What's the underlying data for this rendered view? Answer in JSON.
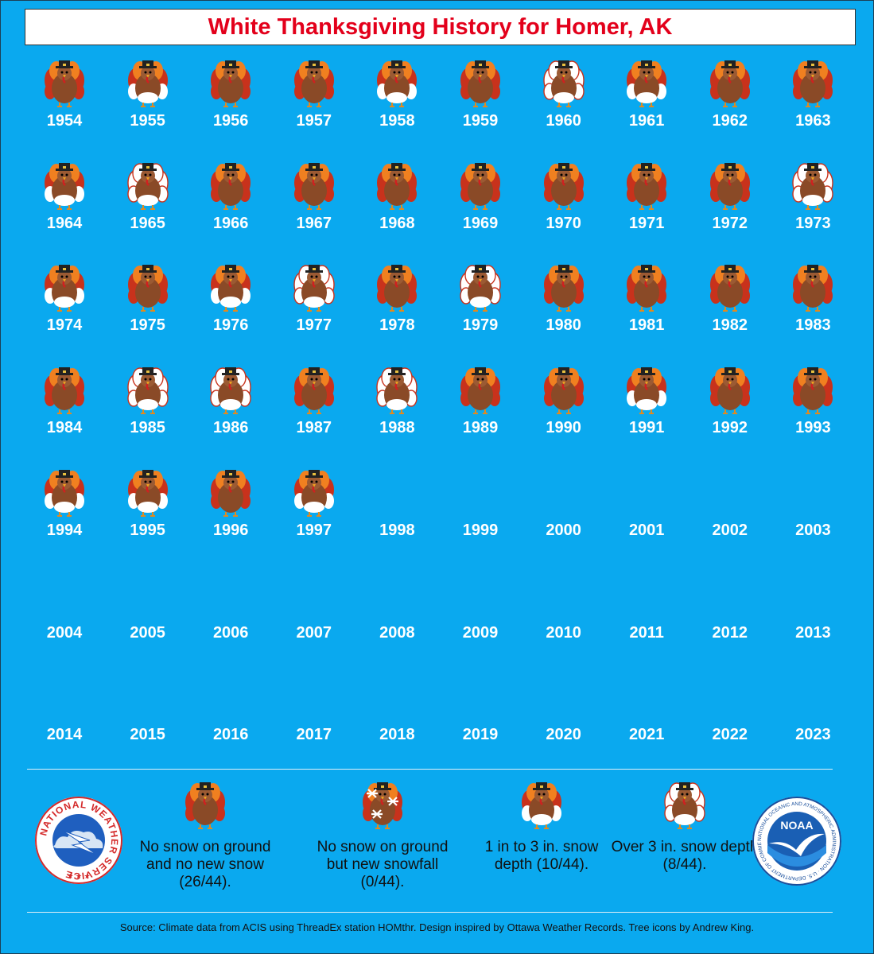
{
  "title": "White Thanksgiving History for Homer, AK",
  "chart_data": {
    "type": "table",
    "categories_legend": [
      "none",
      "new_snow_only",
      "1_to_3_in",
      "over_3_in"
    ],
    "records": [
      {
        "year": "1954",
        "cat": "none"
      },
      {
        "year": "1955",
        "cat": "1_to_3_in"
      },
      {
        "year": "1956",
        "cat": "none"
      },
      {
        "year": "1957",
        "cat": "none"
      },
      {
        "year": "1958",
        "cat": "1_to_3_in"
      },
      {
        "year": "1959",
        "cat": "none"
      },
      {
        "year": "1960",
        "cat": "over_3_in"
      },
      {
        "year": "1961",
        "cat": "1_to_3_in"
      },
      {
        "year": "1962",
        "cat": "none"
      },
      {
        "year": "1963",
        "cat": "none"
      },
      {
        "year": "1964",
        "cat": "1_to_3_in"
      },
      {
        "year": "1965",
        "cat": "over_3_in"
      },
      {
        "year": "1966",
        "cat": "none"
      },
      {
        "year": "1967",
        "cat": "none"
      },
      {
        "year": "1968",
        "cat": "none"
      },
      {
        "year": "1969",
        "cat": "none"
      },
      {
        "year": "1970",
        "cat": "none"
      },
      {
        "year": "1971",
        "cat": "none"
      },
      {
        "year": "1972",
        "cat": "none"
      },
      {
        "year": "1973",
        "cat": "over_3_in"
      },
      {
        "year": "1974",
        "cat": "1_to_3_in"
      },
      {
        "year": "1975",
        "cat": "none"
      },
      {
        "year": "1976",
        "cat": "1_to_3_in"
      },
      {
        "year": "1977",
        "cat": "over_3_in"
      },
      {
        "year": "1978",
        "cat": "none"
      },
      {
        "year": "1979",
        "cat": "over_3_in"
      },
      {
        "year": "1980",
        "cat": "none"
      },
      {
        "year": "1981",
        "cat": "none"
      },
      {
        "year": "1982",
        "cat": "none"
      },
      {
        "year": "1983",
        "cat": "none"
      },
      {
        "year": "1984",
        "cat": "none"
      },
      {
        "year": "1985",
        "cat": "over_3_in"
      },
      {
        "year": "1986",
        "cat": "over_3_in"
      },
      {
        "year": "1987",
        "cat": "none"
      },
      {
        "year": "1988",
        "cat": "over_3_in"
      },
      {
        "year": "1989",
        "cat": "none"
      },
      {
        "year": "1990",
        "cat": "none"
      },
      {
        "year": "1991",
        "cat": "1_to_3_in"
      },
      {
        "year": "1992",
        "cat": "none"
      },
      {
        "year": "1993",
        "cat": "none"
      },
      {
        "year": "1994",
        "cat": "1_to_3_in"
      },
      {
        "year": "1995",
        "cat": "1_to_3_in"
      },
      {
        "year": "1996",
        "cat": "none"
      },
      {
        "year": "1997",
        "cat": "1_to_3_in"
      },
      {
        "year": "1998",
        "cat": ""
      },
      {
        "year": "1999",
        "cat": ""
      },
      {
        "year": "2000",
        "cat": ""
      },
      {
        "year": "2001",
        "cat": ""
      },
      {
        "year": "2002",
        "cat": ""
      },
      {
        "year": "2003",
        "cat": ""
      },
      {
        "year": "2004",
        "cat": ""
      },
      {
        "year": "2005",
        "cat": ""
      },
      {
        "year": "2006",
        "cat": ""
      },
      {
        "year": "2007",
        "cat": ""
      },
      {
        "year": "2008",
        "cat": ""
      },
      {
        "year": "2009",
        "cat": ""
      },
      {
        "year": "2010",
        "cat": ""
      },
      {
        "year": "2011",
        "cat": ""
      },
      {
        "year": "2012",
        "cat": ""
      },
      {
        "year": "2013",
        "cat": ""
      },
      {
        "year": "2014",
        "cat": ""
      },
      {
        "year": "2015",
        "cat": ""
      },
      {
        "year": "2016",
        "cat": ""
      },
      {
        "year": "2017",
        "cat": ""
      },
      {
        "year": "2018",
        "cat": ""
      },
      {
        "year": "2019",
        "cat": ""
      },
      {
        "year": "2020",
        "cat": ""
      },
      {
        "year": "2021",
        "cat": ""
      },
      {
        "year": "2022",
        "cat": ""
      },
      {
        "year": "2023",
        "cat": ""
      }
    ],
    "legend": [
      {
        "cat": "none",
        "label": "No snow on ground and no new snow (26/44)."
      },
      {
        "cat": "new_snow_only",
        "label": "No snow on ground but new snowfall (0/44)."
      },
      {
        "cat": "1_to_3_in",
        "label": "1 in to 3 in. snow depth (10/44)."
      },
      {
        "cat": "over_3_in",
        "label": "Over 3 in. snow depth (8/44)."
      }
    ]
  },
  "logos": {
    "nws": {
      "text": "NATIONAL WEATHER SERVICE"
    },
    "noaa": {
      "text": "NOAA",
      "ring_text": "NATIONAL OCEANIC AND ATMOSPHERIC ADMINISTRATION · U.S. DEPARTMENT OF COMMERCE"
    }
  },
  "source": "Source: Climate data from ACIS using ThreadEx station HOMthr. Design inspired by Ottawa Weather Records. Tree icons by Andrew King.",
  "colors": {
    "background": "#0aa9ef",
    "title": "#e3001b",
    "turkey_body": "#8a4a27",
    "feather_red": "#c8321c",
    "feather_orange": "#f08020",
    "snow": "#ffffff"
  }
}
